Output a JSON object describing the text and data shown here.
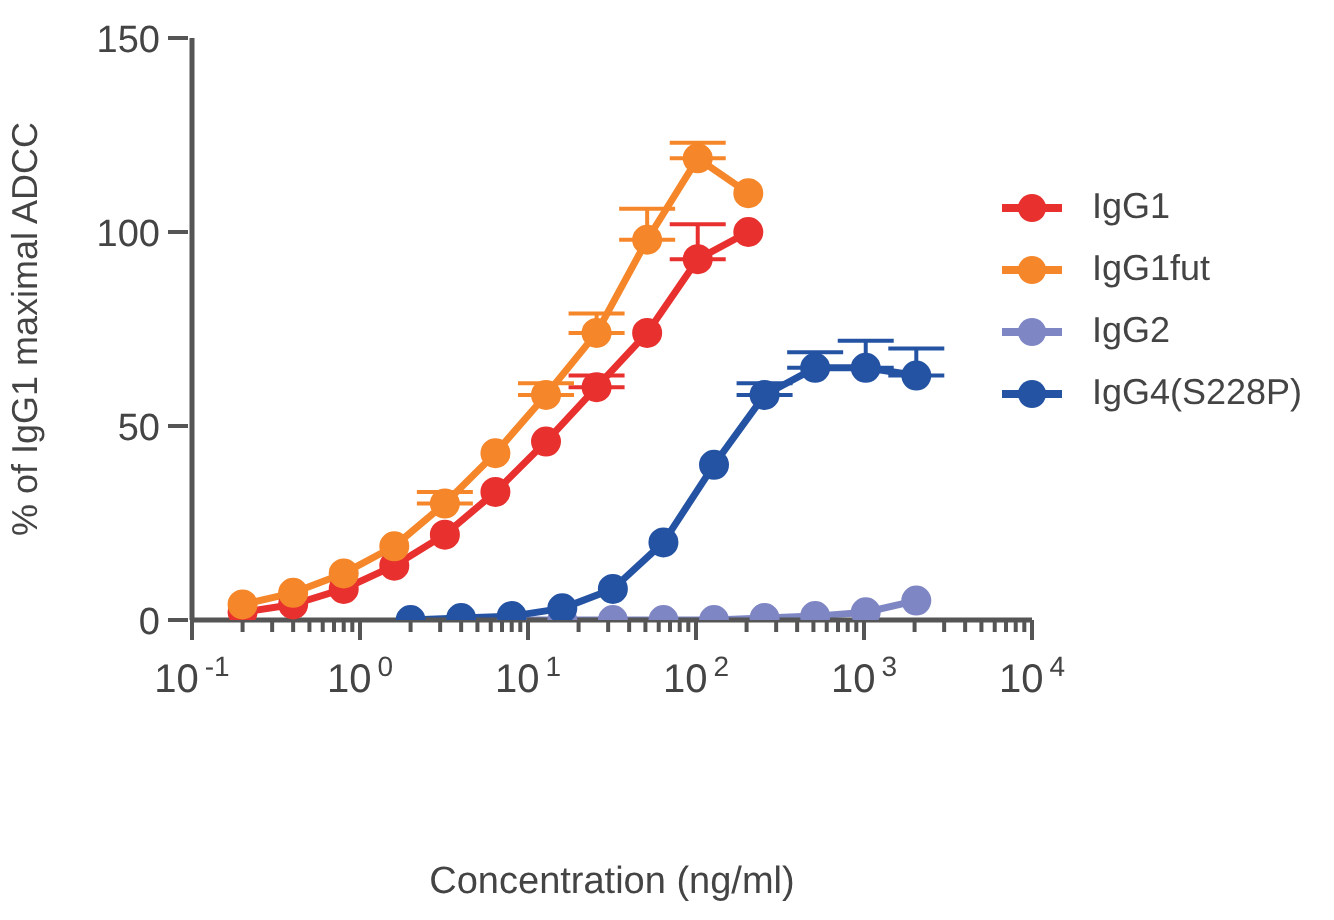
{
  "chart_data": {
    "type": "line",
    "xlabel": "Concentration (ng/ml)",
    "ylabel": "% of IgG1 maximal ADCC",
    "log": "x",
    "xlim": [
      0.1,
      10000
    ],
    "ylim": [
      0,
      150
    ],
    "yticks": [
      0,
      50,
      100,
      150
    ],
    "xticks": [
      {
        "value": 0.1,
        "label": "10$^{-1}$"
      },
      {
        "value": 0.2,
        "label": null
      },
      {
        "value": 0.3,
        "label": null
      },
      {
        "value": 0.4,
        "label": null
      },
      {
        "value": 0.5,
        "label": null
      },
      {
        "value": 0.6,
        "label": null
      },
      {
        "value": 0.7,
        "label": null
      },
      {
        "value": 0.8,
        "label": null
      },
      {
        "value": 0.9,
        "label": null
      },
      {
        "value": 1,
        "label": "10$^{0}$"
      },
      {
        "value": 2,
        "label": null
      },
      {
        "value": 3,
        "label": null
      },
      {
        "value": 4,
        "label": null
      },
      {
        "value": 5,
        "label": null
      },
      {
        "value": 6,
        "label": null
      },
      {
        "value": 7,
        "label": null
      },
      {
        "value": 8,
        "label": null
      },
      {
        "value": 9,
        "label": null
      },
      {
        "value": 10,
        "label": "10$^{1}$"
      },
      {
        "value": 20,
        "label": null
      },
      {
        "value": 30,
        "label": null
      },
      {
        "value": 40,
        "label": null
      },
      {
        "value": 50,
        "label": null
      },
      {
        "value": 60,
        "label": null
      },
      {
        "value": 70,
        "label": null
      },
      {
        "value": 80,
        "label": null
      },
      {
        "value": 90,
        "label": null
      },
      {
        "value": 100,
        "label": "10$^{2}$"
      },
      {
        "value": 200,
        "label": null
      },
      {
        "value": 300,
        "label": null
      },
      {
        "value": 400,
        "label": null
      },
      {
        "value": 500,
        "label": null
      },
      {
        "value": 600,
        "label": null
      },
      {
        "value": 700,
        "label": null
      },
      {
        "value": 800,
        "label": null
      },
      {
        "value": 900,
        "label": null
      },
      {
        "value": 1000,
        "label": "10$^{3}$"
      },
      {
        "value": 2000,
        "label": null
      },
      {
        "value": 3000,
        "label": null
      },
      {
        "value": 4000,
        "label": null
      },
      {
        "value": 5000,
        "label": null
      },
      {
        "value": 6000,
        "label": null
      },
      {
        "value": 7000,
        "label": null
      },
      {
        "value": 8000,
        "label": null
      },
      {
        "value": 9000,
        "label": null
      },
      {
        "value": 10000,
        "label": "10$^{4}$"
      }
    ],
    "legend": "right",
    "marker": "circle",
    "line_style": "solid",
    "series": [
      {
        "name": "IgG1",
        "color": "#e8312f",
        "x": [
          0.2,
          0.4,
          0.8,
          1.6,
          3.2,
          6.4,
          12.8,
          25.6,
          51.2,
          102.4,
          204.8
        ],
        "values": [
          2,
          4,
          8,
          14,
          22,
          33,
          46,
          60,
          74,
          93,
          100
        ],
        "errors": [
          null,
          null,
          null,
          null,
          null,
          null,
          null,
          [
            60,
            63
          ],
          null,
          [
            93,
            102
          ],
          null
        ]
      },
      {
        "name": "IgG1fut",
        "color": "#f5862a",
        "x": [
          0.2,
          0.4,
          0.8,
          1.6,
          3.2,
          6.4,
          12.8,
          25.6,
          51.2,
          102.4,
          204.8
        ],
        "values": [
          4,
          7,
          12,
          19,
          30,
          43,
          58,
          74,
          98,
          119,
          110
        ],
        "errors": [
          null,
          null,
          null,
          null,
          [
            30,
            33
          ],
          null,
          [
            58,
            61
          ],
          [
            74,
            79
          ],
          [
            98,
            106
          ],
          [
            119,
            123
          ],
          null
        ]
      },
      {
        "name": "IgG2",
        "color": "#7f86c4",
        "x": [
          8,
          16,
          32,
          64,
          128,
          256,
          512,
          1024,
          2048
        ],
        "values": [
          0,
          0,
          0,
          0,
          0,
          0.5,
          1,
          2,
          5
        ]
      },
      {
        "name": "IgG4(S228P)",
        "color": "#2553a3",
        "x": [
          2,
          4,
          8,
          16,
          32,
          64,
          128,
          256,
          512,
          1024,
          2048
        ],
        "values": [
          0,
          0.5,
          1,
          3,
          8,
          20,
          40,
          58,
          65,
          65,
          63
        ],
        "errors": [
          null,
          null,
          null,
          null,
          null,
          null,
          null,
          [
            58,
            61
          ],
          [
            65,
            69
          ],
          [
            65,
            72
          ],
          [
            63,
            70
          ]
        ]
      }
    ]
  }
}
